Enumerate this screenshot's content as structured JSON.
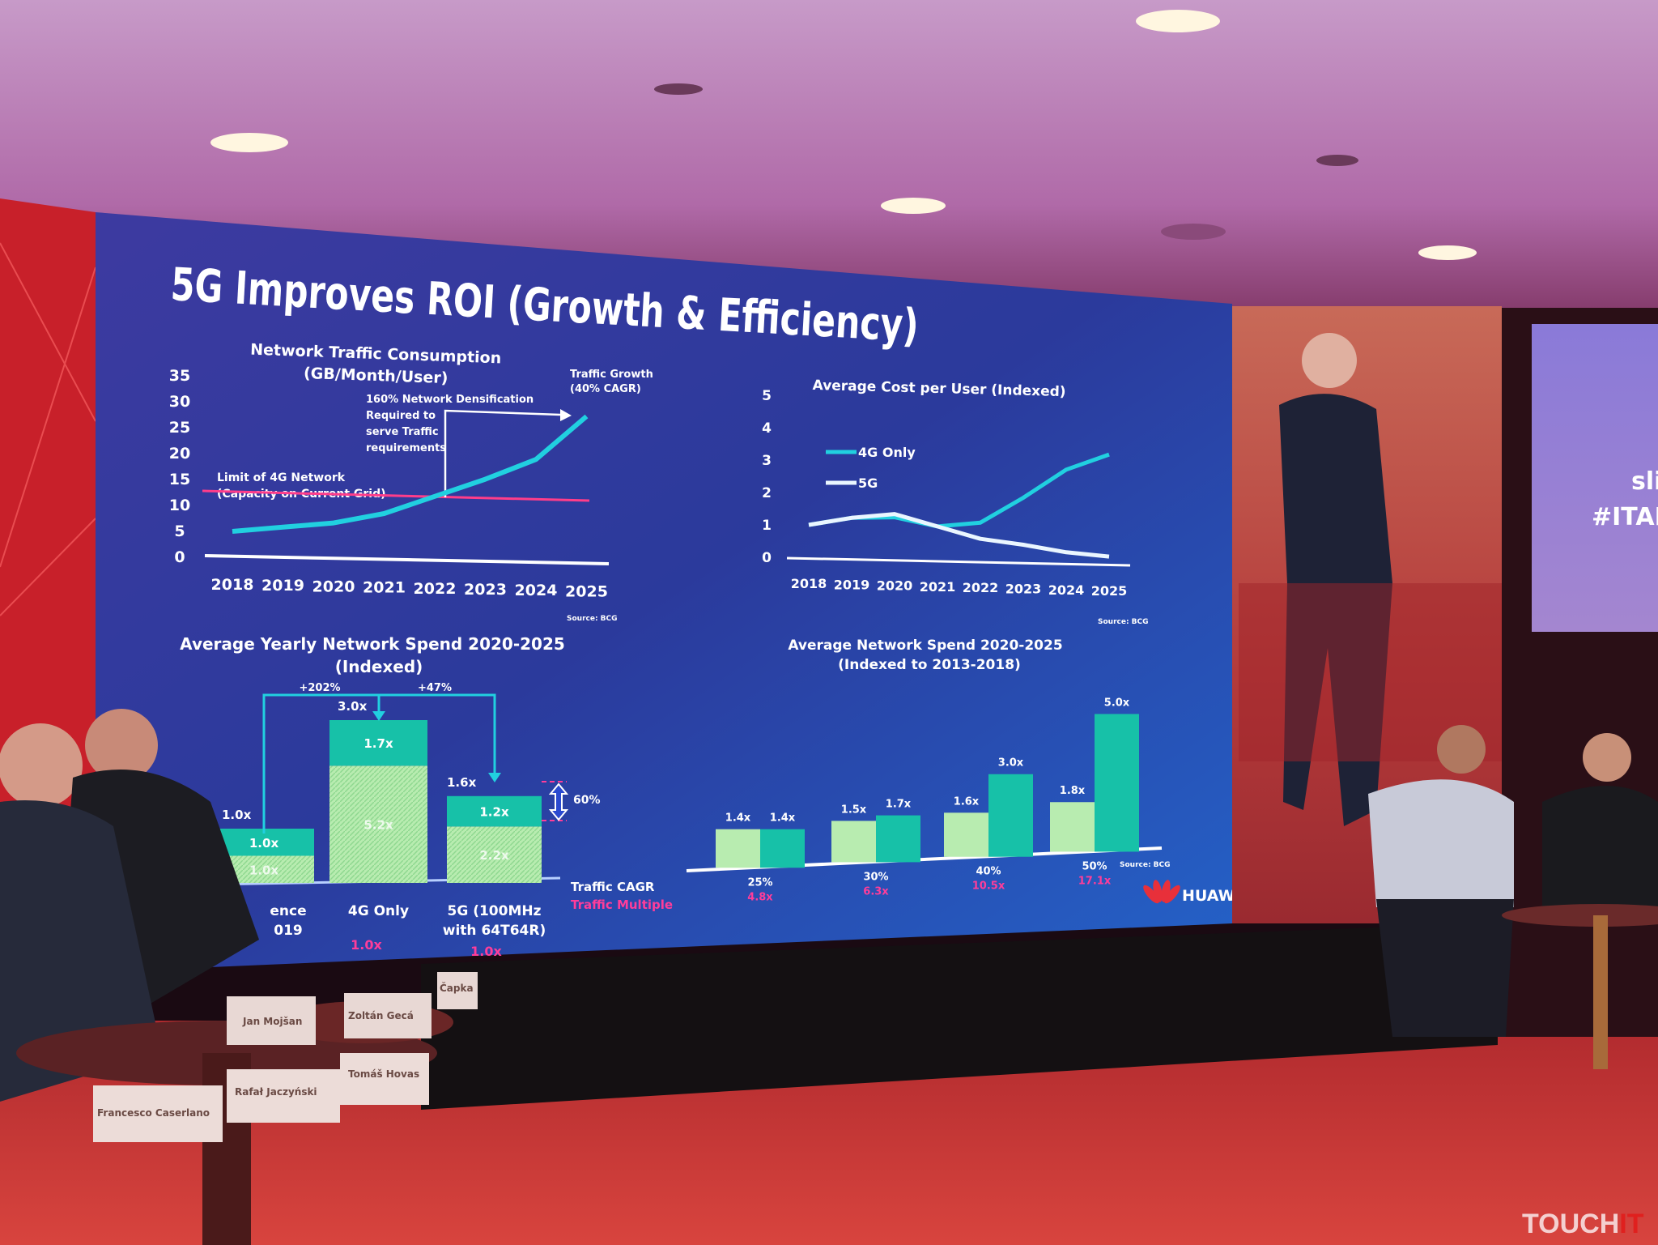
{
  "slide": {
    "title": "5G Improves ROI (Growth & Efficiency)",
    "logo_text": "HUAWEI",
    "brand_color": "#e8303a",
    "background_color": "#2a3a9a",
    "line_color": "#21d0e0",
    "bar_dark_color": "#17c1a8",
    "bar_light_color": "#b8ecb0"
  },
  "side_screen": {
    "line1": "sli",
    "line2": "#ITAP"
  },
  "name_cards": [
    "Jan Mojšan",
    "Zoltán Gecá",
    "Čapka",
    "Francesco Caserlano",
    "Rafał Jaczyński",
    "Tomáš Hovas"
  ],
  "watermark": {
    "text_a": "TOUCH",
    "text_b": "IT"
  },
  "chart_data": [
    {
      "type": "line",
      "title": "Network Traffic Consumption",
      "subtitle": "(GB/Month/User)",
      "x": [
        "2018",
        "2019",
        "2020",
        "2021",
        "2022",
        "2023",
        "2024",
        "2025"
      ],
      "yticks": [
        0,
        5,
        10,
        15,
        20,
        25,
        30,
        35
      ],
      "ylim": [
        0,
        35
      ],
      "series": [
        {
          "values": [
            2.5,
            3.5,
            4.5,
            6.5,
            10,
            13.5,
            17.5,
            26
          ]
        }
      ],
      "limit_line": {
        "value": 10,
        "label1": "Limit of 4G Network",
        "label2": "(Capacity on Current Grid)"
      },
      "annotations": {
        "densification": [
          "160% Network Densification",
          "Required to",
          "serve Traffic",
          "requirements"
        ],
        "growth": [
          "Traffic Growth",
          "(40% CAGR)"
        ]
      },
      "source": "Source: BCG"
    },
    {
      "type": "line",
      "title": "Average Cost per User (Indexed)",
      "x": [
        "2018",
        "2019",
        "2020",
        "2021",
        "2022",
        "2023",
        "2024",
        "2025"
      ],
      "yticks": [
        0,
        1,
        2,
        3,
        4,
        5
      ],
      "ylim": [
        0,
        5
      ],
      "legend": "left",
      "series": [
        {
          "name": "4G Only",
          "values": [
            1.0,
            1.25,
            1.3,
            1.05,
            1.2,
            2.0,
            2.9,
            3.4
          ]
        },
        {
          "name": "5G",
          "values": [
            1.0,
            1.25,
            1.4,
            1.05,
            0.7,
            0.55,
            0.35,
            0.25
          ]
        }
      ],
      "source": "Source: BCG"
    },
    {
      "type": "bar",
      "title": "Average Yearly Network Spend 2020-2025",
      "subtitle": "(Indexed)",
      "categories": [
        {
          "label1": "ence",
          "label2": "019",
          "total": "1.0x",
          "total_value": 1.0,
          "upper": "1.0x",
          "lower": "1.0x",
          "upper_share": 0.5,
          "pink": ""
        },
        {
          "label1": "4G Only",
          "label2": "",
          "total": "3.0x",
          "total_value": 3.0,
          "upper": "1.7x",
          "lower": "5.2x",
          "upper_share": 0.28,
          "pink": "1.0x"
        },
        {
          "label1": "5G (100MHz",
          "label2": "with 64T64R)",
          "total": "1.6x",
          "total_value": 1.6,
          "upper": "1.2x",
          "lower": "2.2x",
          "upper_share": 0.35,
          "pink": "1.0x"
        }
      ],
      "annotations": {
        "inc_4g": "+202%",
        "inc_5g": "+47%",
        "saving": "60%"
      }
    },
    {
      "type": "bar",
      "title": "Average Network Spend 2020-2025",
      "subtitle": "(Indexed to 2013-2018)",
      "row_labels": {
        "cagr": "Traffic CAGR",
        "multiple": "Traffic Multiple"
      },
      "groups": [
        {
          "light": 1.4,
          "dark": 1.4,
          "light_label": "1.4x",
          "dark_label": "1.4x",
          "cagr": "25%",
          "multiple": "4.8x"
        },
        {
          "light": 1.5,
          "dark": 1.7,
          "light_label": "1.5x",
          "dark_label": "1.7x",
          "cagr": "30%",
          "multiple": "6.3x"
        },
        {
          "light": 1.6,
          "dark": 3.0,
          "light_label": "1.6x",
          "dark_label": "3.0x",
          "cagr": "40%",
          "multiple": "10.5x"
        },
        {
          "light": 1.8,
          "dark": 5.0,
          "light_label": "1.8x",
          "dark_label": "5.0x",
          "cagr": "50%",
          "multiple": "17.1x"
        }
      ],
      "source": "Source: BCG"
    }
  ]
}
